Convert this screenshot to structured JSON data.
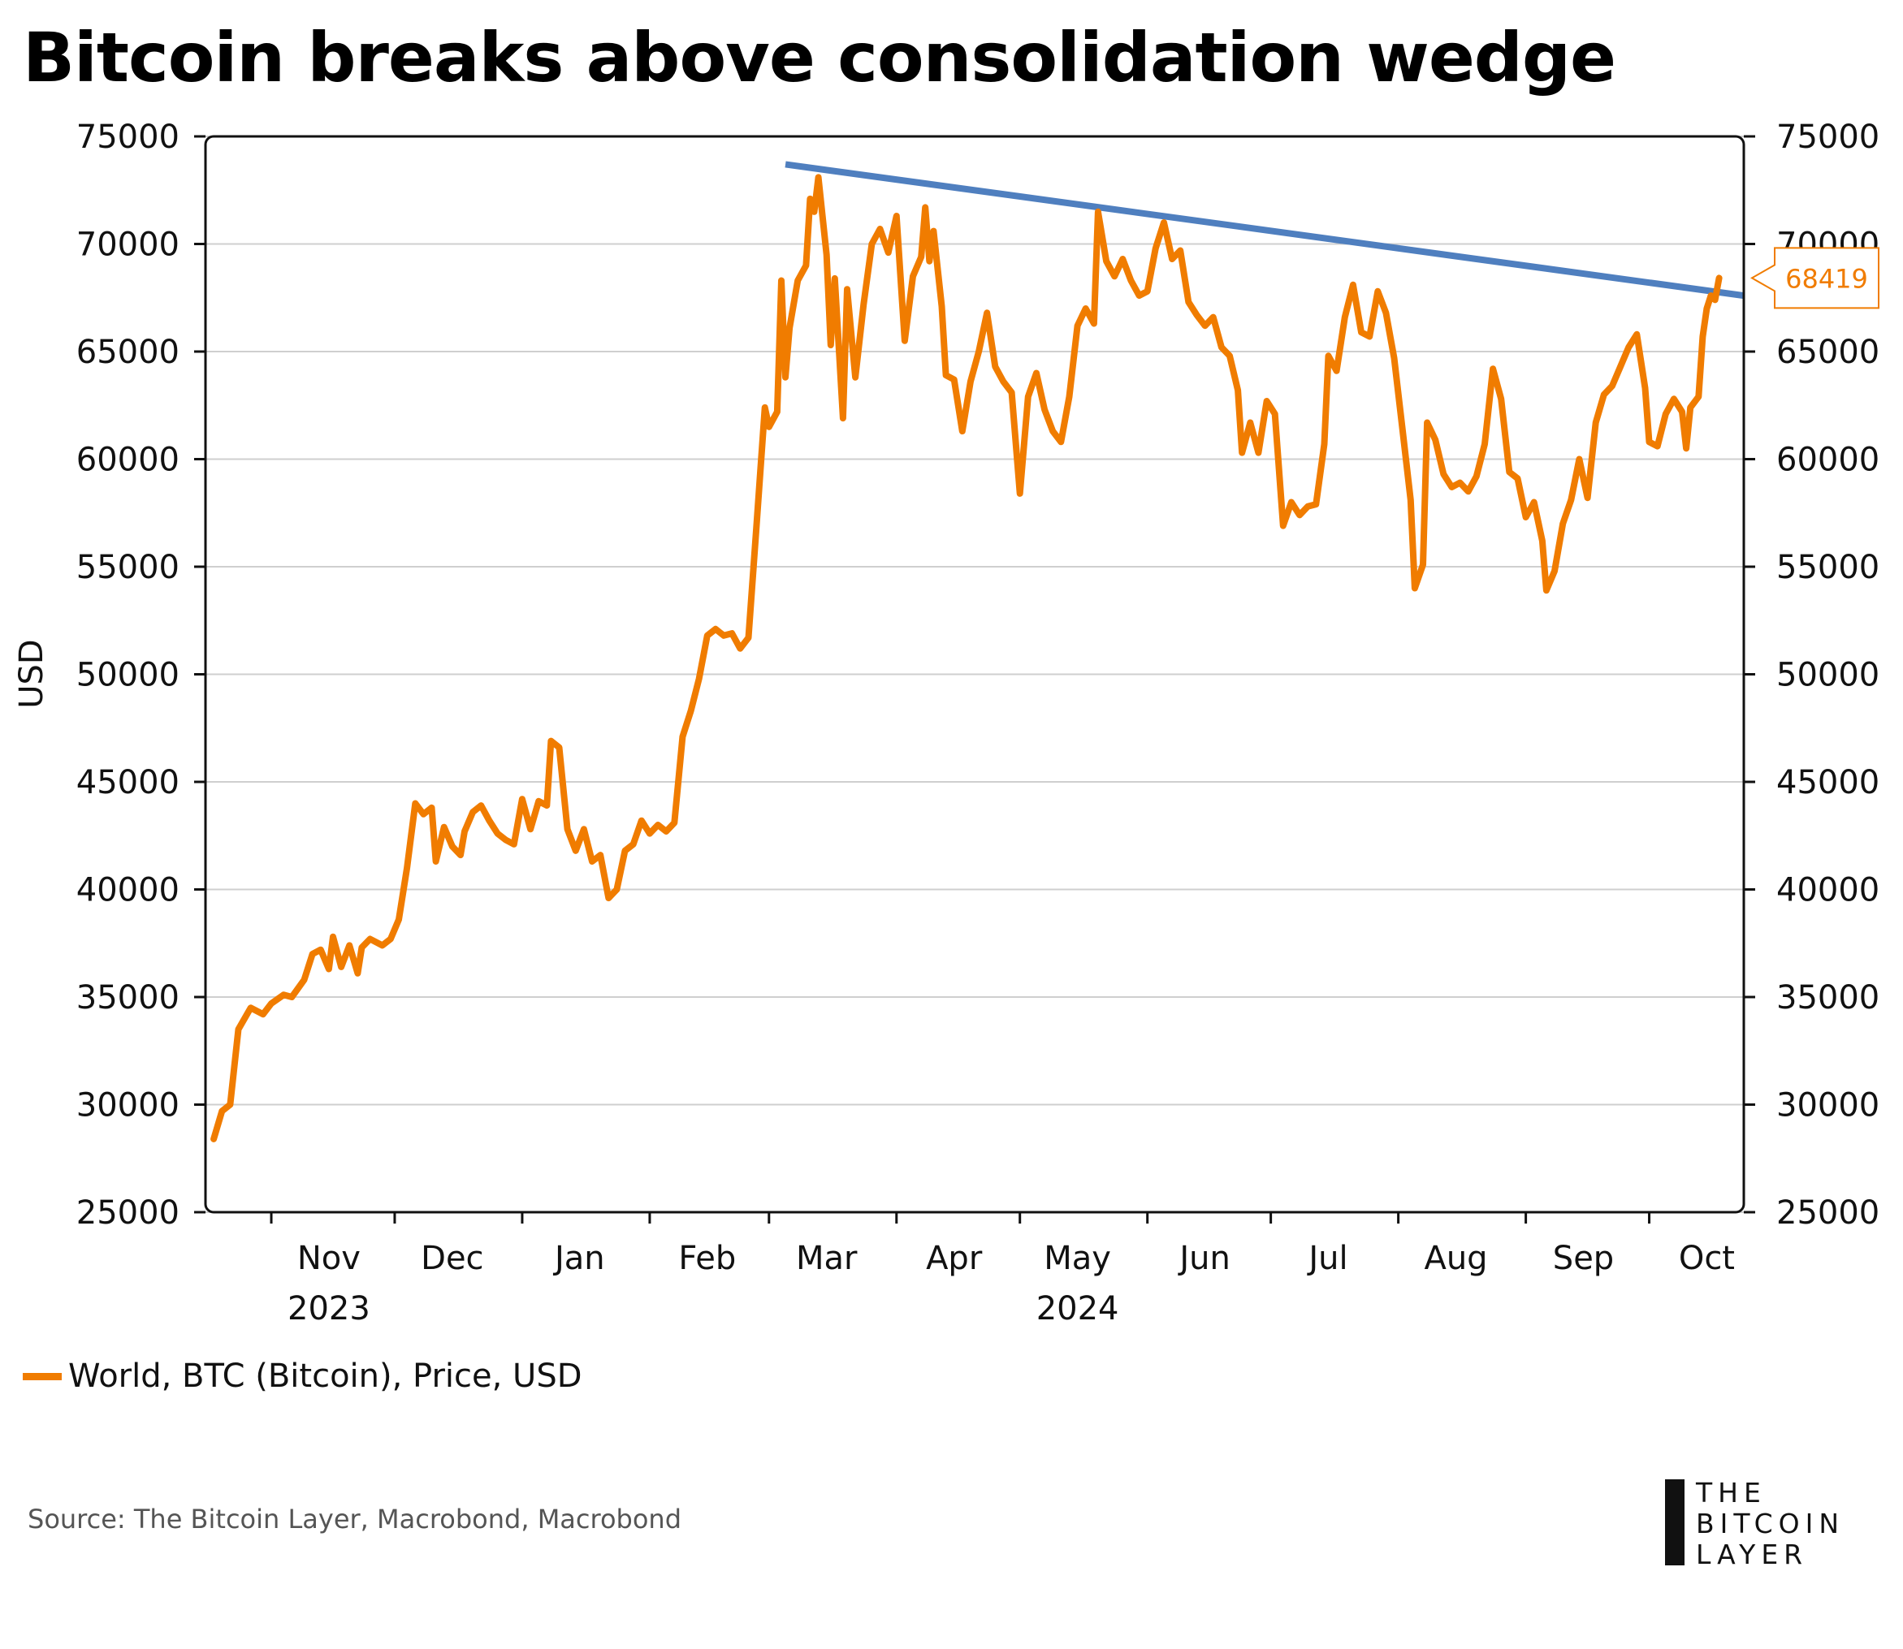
{
  "title": "Bitcoin breaks above consolidation wedge",
  "colors": {
    "price": "#f07c00",
    "trend": "#4f7fbf",
    "grid": "#cfcfcf",
    "axis": "#111111"
  },
  "legend": {
    "label": "World, BTC (Bitcoin), Price, USD"
  },
  "source": "Source: The Bitcoin Layer, Macrobond, Macrobond",
  "logo": {
    "lines": [
      "THE",
      "BITCOIN",
      "LAYER"
    ]
  },
  "chart_data": {
    "type": "line",
    "title": "Bitcoin breaks above consolidation wedge",
    "ylabel": "USD",
    "ylim": [
      25000,
      75000
    ],
    "yticks": [
      25000,
      30000,
      35000,
      40000,
      45000,
      50000,
      55000,
      60000,
      65000,
      70000,
      75000
    ],
    "grid": true,
    "legend_position": "bottom-left",
    "x_range": [
      "2023-10-16",
      "2024-10-24"
    ],
    "month_labels": [
      {
        "label": "Nov",
        "date": "2023-11-15"
      },
      {
        "label": "Dec",
        "date": "2023-12-15"
      },
      {
        "label": "Jan",
        "date": "2024-01-15"
      },
      {
        "label": "Feb",
        "date": "2024-02-15"
      },
      {
        "label": "Mar",
        "date": "2024-03-15"
      },
      {
        "label": "Apr",
        "date": "2024-04-15"
      },
      {
        "label": "May",
        "date": "2024-05-15"
      },
      {
        "label": "Jun",
        "date": "2024-06-15"
      },
      {
        "label": "Jul",
        "date": "2024-07-15"
      },
      {
        "label": "Aug",
        "date": "2024-08-15"
      },
      {
        "label": "Sep",
        "date": "2024-09-15"
      },
      {
        "label": "Oct",
        "date": "2024-10-15"
      }
    ],
    "year_labels": [
      {
        "label": "2023",
        "date": "2023-11-15"
      },
      {
        "label": "2024",
        "date": "2024-05-15"
      }
    ],
    "last_value_label": "68419",
    "series": [
      {
        "name": "World, BTC (Bitcoin), Price, USD",
        "points": [
          [
            "2023-10-18",
            28400
          ],
          [
            "2023-10-20",
            29700
          ],
          [
            "2023-10-22",
            30000
          ],
          [
            "2023-10-24",
            33500
          ],
          [
            "2023-10-27",
            34500
          ],
          [
            "2023-10-30",
            34200
          ],
          [
            "2023-11-01",
            34700
          ],
          [
            "2023-11-04",
            35100
          ],
          [
            "2023-11-06",
            35000
          ],
          [
            "2023-11-09",
            35800
          ],
          [
            "2023-11-11",
            37000
          ],
          [
            "2023-11-13",
            37200
          ],
          [
            "2023-11-15",
            36300
          ],
          [
            "2023-11-16",
            37800
          ],
          [
            "2023-11-18",
            36400
          ],
          [
            "2023-11-20",
            37400
          ],
          [
            "2023-11-22",
            36100
          ],
          [
            "2023-11-23",
            37300
          ],
          [
            "2023-11-25",
            37700
          ],
          [
            "2023-11-28",
            37400
          ],
          [
            "2023-11-30",
            37700
          ],
          [
            "2023-12-02",
            38600
          ],
          [
            "2023-12-04",
            41000
          ],
          [
            "2023-12-06",
            44000
          ],
          [
            "2023-12-08",
            43500
          ],
          [
            "2023-12-10",
            43800
          ],
          [
            "2023-12-11",
            41300
          ],
          [
            "2023-12-13",
            42900
          ],
          [
            "2023-12-15",
            42000
          ],
          [
            "2023-12-17",
            41600
          ],
          [
            "2023-12-18",
            42700
          ],
          [
            "2023-12-20",
            43600
          ],
          [
            "2023-12-22",
            43900
          ],
          [
            "2023-12-24",
            43200
          ],
          [
            "2023-12-26",
            42600
          ],
          [
            "2023-12-28",
            42300
          ],
          [
            "2023-12-30",
            42100
          ],
          [
            "2024-01-01",
            44200
          ],
          [
            "2024-01-03",
            42800
          ],
          [
            "2024-01-05",
            44100
          ],
          [
            "2024-01-07",
            43900
          ],
          [
            "2024-01-08",
            46900
          ],
          [
            "2024-01-10",
            46600
          ],
          [
            "2024-01-12",
            42800
          ],
          [
            "2024-01-14",
            41800
          ],
          [
            "2024-01-16",
            42800
          ],
          [
            "2024-01-18",
            41300
          ],
          [
            "2024-01-20",
            41600
          ],
          [
            "2024-01-22",
            39600
          ],
          [
            "2024-01-24",
            40000
          ],
          [
            "2024-01-26",
            41800
          ],
          [
            "2024-01-28",
            42100
          ],
          [
            "2024-01-30",
            43200
          ],
          [
            "2024-02-01",
            42600
          ],
          [
            "2024-02-03",
            43000
          ],
          [
            "2024-02-05",
            42700
          ],
          [
            "2024-02-07",
            43100
          ],
          [
            "2024-02-09",
            47100
          ],
          [
            "2024-02-11",
            48300
          ],
          [
            "2024-02-13",
            49800
          ],
          [
            "2024-02-15",
            51800
          ],
          [
            "2024-02-17",
            52100
          ],
          [
            "2024-02-19",
            51800
          ],
          [
            "2024-02-21",
            51900
          ],
          [
            "2024-02-23",
            51200
          ],
          [
            "2024-02-25",
            51700
          ],
          [
            "2024-02-27",
            57000
          ],
          [
            "2024-02-29",
            62400
          ],
          [
            "2024-03-01",
            61500
          ],
          [
            "2024-03-03",
            62200
          ],
          [
            "2024-03-04",
            68300
          ],
          [
            "2024-03-05",
            63800
          ],
          [
            "2024-03-06",
            66100
          ],
          [
            "2024-03-08",
            68300
          ],
          [
            "2024-03-10",
            69000
          ],
          [
            "2024-03-11",
            72100
          ],
          [
            "2024-03-12",
            71500
          ],
          [
            "2024-03-13",
            73100
          ],
          [
            "2024-03-15",
            69500
          ],
          [
            "2024-03-16",
            65300
          ],
          [
            "2024-03-17",
            68400
          ],
          [
            "2024-03-19",
            61900
          ],
          [
            "2024-03-20",
            67900
          ],
          [
            "2024-03-22",
            63800
          ],
          [
            "2024-03-24",
            67200
          ],
          [
            "2024-03-26",
            70000
          ],
          [
            "2024-03-28",
            70700
          ],
          [
            "2024-03-30",
            69600
          ],
          [
            "2024-04-01",
            71300
          ],
          [
            "2024-04-03",
            65500
          ],
          [
            "2024-04-05",
            68500
          ],
          [
            "2024-04-07",
            69400
          ],
          [
            "2024-04-08",
            71700
          ],
          [
            "2024-04-09",
            69200
          ],
          [
            "2024-04-10",
            70600
          ],
          [
            "2024-04-12",
            67100
          ],
          [
            "2024-04-13",
            63900
          ],
          [
            "2024-04-15",
            63700
          ],
          [
            "2024-04-17",
            61300
          ],
          [
            "2024-04-19",
            63600
          ],
          [
            "2024-04-21",
            65000
          ],
          [
            "2024-04-23",
            66800
          ],
          [
            "2024-04-25",
            64300
          ],
          [
            "2024-04-27",
            63600
          ],
          [
            "2024-04-29",
            63100
          ],
          [
            "2024-05-01",
            58400
          ],
          [
            "2024-05-03",
            62900
          ],
          [
            "2024-05-05",
            64000
          ],
          [
            "2024-05-07",
            62300
          ],
          [
            "2024-05-09",
            61300
          ],
          [
            "2024-05-11",
            60800
          ],
          [
            "2024-05-13",
            62900
          ],
          [
            "2024-05-15",
            66200
          ],
          [
            "2024-05-17",
            67000
          ],
          [
            "2024-05-19",
            66300
          ],
          [
            "2024-05-20",
            71500
          ],
          [
            "2024-05-22",
            69200
          ],
          [
            "2024-05-24",
            68500
          ],
          [
            "2024-05-26",
            69300
          ],
          [
            "2024-05-28",
            68300
          ],
          [
            "2024-05-30",
            67600
          ],
          [
            "2024-06-01",
            67800
          ],
          [
            "2024-06-03",
            69800
          ],
          [
            "2024-06-05",
            71000
          ],
          [
            "2024-06-07",
            69300
          ],
          [
            "2024-06-09",
            69700
          ],
          [
            "2024-06-11",
            67300
          ],
          [
            "2024-06-13",
            66700
          ],
          [
            "2024-06-15",
            66200
          ],
          [
            "2024-06-17",
            66600
          ],
          [
            "2024-06-19",
            65200
          ],
          [
            "2024-06-21",
            64800
          ],
          [
            "2024-06-23",
            63200
          ],
          [
            "2024-06-24",
            60300
          ],
          [
            "2024-06-26",
            61700
          ],
          [
            "2024-06-28",
            60300
          ],
          [
            "2024-06-30",
            62700
          ],
          [
            "2024-07-02",
            62100
          ],
          [
            "2024-07-04",
            56900
          ],
          [
            "2024-07-06",
            58000
          ],
          [
            "2024-07-08",
            57400
          ],
          [
            "2024-07-10",
            57800
          ],
          [
            "2024-07-12",
            57900
          ],
          [
            "2024-07-14",
            60700
          ],
          [
            "2024-07-15",
            64800
          ],
          [
            "2024-07-17",
            64100
          ],
          [
            "2024-07-19",
            66600
          ],
          [
            "2024-07-21",
            68100
          ],
          [
            "2024-07-23",
            65900
          ],
          [
            "2024-07-25",
            65700
          ],
          [
            "2024-07-27",
            67800
          ],
          [
            "2024-07-29",
            66800
          ],
          [
            "2024-07-31",
            64700
          ],
          [
            "2024-08-02",
            61400
          ],
          [
            "2024-08-04",
            58100
          ],
          [
            "2024-08-05",
            54000
          ],
          [
            "2024-08-07",
            55100
          ],
          [
            "2024-08-08",
            61700
          ],
          [
            "2024-08-10",
            60900
          ],
          [
            "2024-08-12",
            59300
          ],
          [
            "2024-08-14",
            58700
          ],
          [
            "2024-08-16",
            58900
          ],
          [
            "2024-08-18",
            58500
          ],
          [
            "2024-08-20",
            59200
          ],
          [
            "2024-08-22",
            60700
          ],
          [
            "2024-08-24",
            64200
          ],
          [
            "2024-08-26",
            62800
          ],
          [
            "2024-08-28",
            59400
          ],
          [
            "2024-08-30",
            59100
          ],
          [
            "2024-09-01",
            57300
          ],
          [
            "2024-09-03",
            58000
          ],
          [
            "2024-09-05",
            56200
          ],
          [
            "2024-09-06",
            53900
          ],
          [
            "2024-09-08",
            54800
          ],
          [
            "2024-09-10",
            57000
          ],
          [
            "2024-09-12",
            58100
          ],
          [
            "2024-09-14",
            60000
          ],
          [
            "2024-09-16",
            58200
          ],
          [
            "2024-09-18",
            61700
          ],
          [
            "2024-09-20",
            63000
          ],
          [
            "2024-09-22",
            63400
          ],
          [
            "2024-09-24",
            64300
          ],
          [
            "2024-09-26",
            65200
          ],
          [
            "2024-09-28",
            65800
          ],
          [
            "2024-09-30",
            63300
          ],
          [
            "2024-10-01",
            60800
          ],
          [
            "2024-10-03",
            60600
          ],
          [
            "2024-10-05",
            62100
          ],
          [
            "2024-10-07",
            62800
          ],
          [
            "2024-10-09",
            62200
          ],
          [
            "2024-10-10",
            60500
          ],
          [
            "2024-10-11",
            62400
          ],
          [
            "2024-10-13",
            62900
          ],
          [
            "2024-10-14",
            65700
          ],
          [
            "2024-10-15",
            67000
          ],
          [
            "2024-10-16",
            67600
          ],
          [
            "2024-10-17",
            67400
          ],
          [
            "2024-10-18",
            68419
          ]
        ]
      }
    ],
    "trendline": {
      "points": [
        [
          "2024-03-05",
          73700
        ],
        [
          "2024-10-24",
          67600
        ]
      ]
    }
  }
}
